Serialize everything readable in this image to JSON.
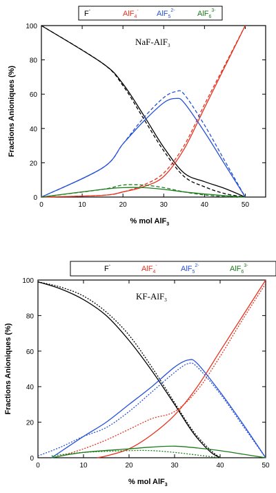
{
  "chart_data": [
    {
      "type": "line",
      "title": "NaF-AlF3",
      "title_main": "NaF-AlF",
      "title_sub": "3",
      "xlabel_main": "% mol AlF",
      "xlabel_sub": "3",
      "ylabel": "Fractions Anioniques (%)",
      "xlim": [
        0,
        55
      ],
      "ylim": [
        0,
        100
      ],
      "xticks": [
        0,
        10,
        20,
        30,
        40,
        50
      ],
      "yticks": [
        0,
        20,
        40,
        60,
        80,
        100
      ],
      "legend_placement": "top",
      "legend": [
        {
          "base": "F",
          "sub": "",
          "sup": "-",
          "color": "#000000"
        },
        {
          "base": "AlF",
          "sub": "4",
          "sup": "-",
          "color": "#e8301c"
        },
        {
          "base": "AlF",
          "sub": "5",
          "sup": "2-",
          "color": "#2550d8"
        },
        {
          "base": "AlF",
          "sub": "6",
          "sup": "3-",
          "color": "#1a7a1a"
        }
      ],
      "series": [
        {
          "name": "F-",
          "color": "#000000",
          "style": "solid",
          "x": [
            0,
            15,
            20,
            25,
            30,
            35,
            40,
            45,
            50
          ],
          "y": [
            100,
            78,
            66,
            48,
            29,
            14,
            9,
            5,
            0
          ]
        },
        {
          "name": "F-",
          "color": "#000000",
          "style": "dashed",
          "x": [
            0,
            15,
            20,
            25,
            30,
            35,
            40,
            45,
            50
          ],
          "y": [
            100,
            78,
            65,
            46,
            27,
            12,
            6,
            2,
            0
          ]
        },
        {
          "name": "AlF4-",
          "color": "#e8301c",
          "style": "solid",
          "x": [
            0,
            15,
            20,
            25,
            30,
            35,
            40,
            45,
            50
          ],
          "y": [
            0,
            1,
            3,
            6,
            12,
            28,
            52,
            76,
            100
          ]
        },
        {
          "name": "AlF4-",
          "color": "#e8301c",
          "style": "dashed",
          "x": [
            0,
            15,
            20,
            25,
            30,
            35,
            40,
            45,
            50
          ],
          "y": [
            0,
            1,
            3,
            7,
            14,
            30,
            54,
            77,
            100
          ]
        },
        {
          "name": "AlF52-",
          "color": "#2550d8",
          "style": "solid",
          "x": [
            0,
            15,
            20,
            25,
            30,
            33,
            35,
            40,
            45,
            50
          ],
          "y": [
            0,
            17,
            31,
            44,
            55,
            57.5,
            55,
            38,
            19,
            0
          ]
        },
        {
          "name": "AlF52-",
          "color": "#2550d8",
          "style": "dashed",
          "x": [
            0,
            15,
            20,
            25,
            30,
            33,
            35,
            40,
            45,
            50
          ],
          "y": [
            0,
            17,
            31,
            46,
            58,
            61.5,
            60,
            42,
            21,
            0
          ]
        },
        {
          "name": "AlF63-",
          "color": "#1a7a1a",
          "style": "solid",
          "x": [
            0,
            15,
            20,
            25,
            30,
            35,
            40,
            45,
            50
          ],
          "y": [
            0,
            4.5,
            5.5,
            5.5,
            4.5,
            3,
            1.8,
            0.8,
            0
          ]
        },
        {
          "name": "AlF63-",
          "color": "#1a7a1a",
          "style": "dashed",
          "x": [
            0,
            15,
            20,
            25,
            30,
            35,
            40,
            45,
            50
          ],
          "y": [
            0,
            4.5,
            7,
            7,
            5.5,
            3,
            1.2,
            0.3,
            0
          ]
        }
      ]
    },
    {
      "type": "line",
      "title": "KF-AlF3",
      "title_main": "KF-AlF",
      "title_sub": "3",
      "xlabel_main": "% mol AlF",
      "xlabel_sub": "3",
      "ylabel": "Fractions Anioniques (%)",
      "xlim": [
        0,
        50
      ],
      "ylim": [
        0,
        100
      ],
      "xticks": [
        0,
        10,
        20,
        30,
        40,
        50
      ],
      "yticks": [
        0,
        20,
        40,
        60,
        80,
        100
      ],
      "legend_placement": "top",
      "legend": [
        {
          "base": "F",
          "sub": "",
          "sup": "-",
          "color": "#000000"
        },
        {
          "base": "AlF",
          "sub": "4",
          "sup": "-",
          "color": "#e8301c"
        },
        {
          "base": "AlF",
          "sub": "5",
          "sup": "2-",
          "color": "#2550d8"
        },
        {
          "base": "AlF",
          "sub": "6",
          "sup": "3-",
          "color": "#1a7a1a"
        }
      ],
      "series": [
        {
          "name": "F-",
          "color": "#000000",
          "style": "solid",
          "x": [
            0,
            5,
            10,
            15,
            20,
            25,
            30,
            33,
            35,
            38,
            40
          ],
          "y": [
            99,
            95,
            89,
            80,
            66,
            49,
            30,
            18,
            11,
            3,
            0
          ]
        },
        {
          "name": "F-",
          "color": "#000000",
          "style": "dotted",
          "x": [
            0,
            5,
            10,
            15,
            20,
            25,
            30,
            33,
            35,
            38,
            40
          ],
          "y": [
            99,
            96,
            91,
            82,
            69,
            51,
            31,
            19,
            12,
            4,
            0
          ]
        },
        {
          "name": "AlF4-",
          "color": "#e8301c",
          "style": "solid",
          "x": [
            13,
            15,
            20,
            25,
            30,
            35,
            40,
            45,
            50
          ],
          "y": [
            0,
            1,
            5,
            13,
            24,
            40,
            60,
            80,
            100
          ]
        },
        {
          "name": "AlF4-",
          "color": "#e8301c",
          "style": "dotted",
          "x": [
            5,
            10,
            15,
            20,
            25,
            30,
            35,
            40,
            45,
            50
          ],
          "y": [
            1,
            5,
            10,
            16,
            22,
            26,
            38,
            57,
            78,
            98
          ]
        },
        {
          "name": "AlF52-",
          "color": "#2550d8",
          "style": "solid",
          "x": [
            3,
            10,
            15,
            20,
            25,
            30,
            33,
            35,
            40,
            45,
            50
          ],
          "y": [
            0,
            12,
            20,
            30,
            40,
            51,
            55,
            53,
            37,
            19,
            0
          ]
        },
        {
          "name": "AlF52-",
          "color": "#2550d8",
          "style": "dotted",
          "x": [
            0,
            5,
            10,
            15,
            20,
            25,
            30,
            33,
            35,
            40,
            45,
            50
          ],
          "y": [
            1,
            6,
            12,
            17,
            26,
            37,
            48,
            53,
            51,
            36,
            18,
            0
          ]
        },
        {
          "name": "AlF63-",
          "color": "#1a7a1a",
          "style": "solid",
          "x": [
            3,
            10,
            20,
            25,
            30,
            35,
            40,
            45,
            50
          ],
          "y": [
            0,
            3,
            5,
            6,
            6.5,
            5.5,
            4,
            2,
            0
          ]
        },
        {
          "name": "AlF63-",
          "color": "#1a7a1a",
          "style": "dotted",
          "x": [
            3,
            10,
            20,
            25,
            30,
            35,
            40
          ],
          "y": [
            1,
            3,
            4,
            4,
            3,
            1.5,
            0
          ]
        }
      ]
    }
  ]
}
